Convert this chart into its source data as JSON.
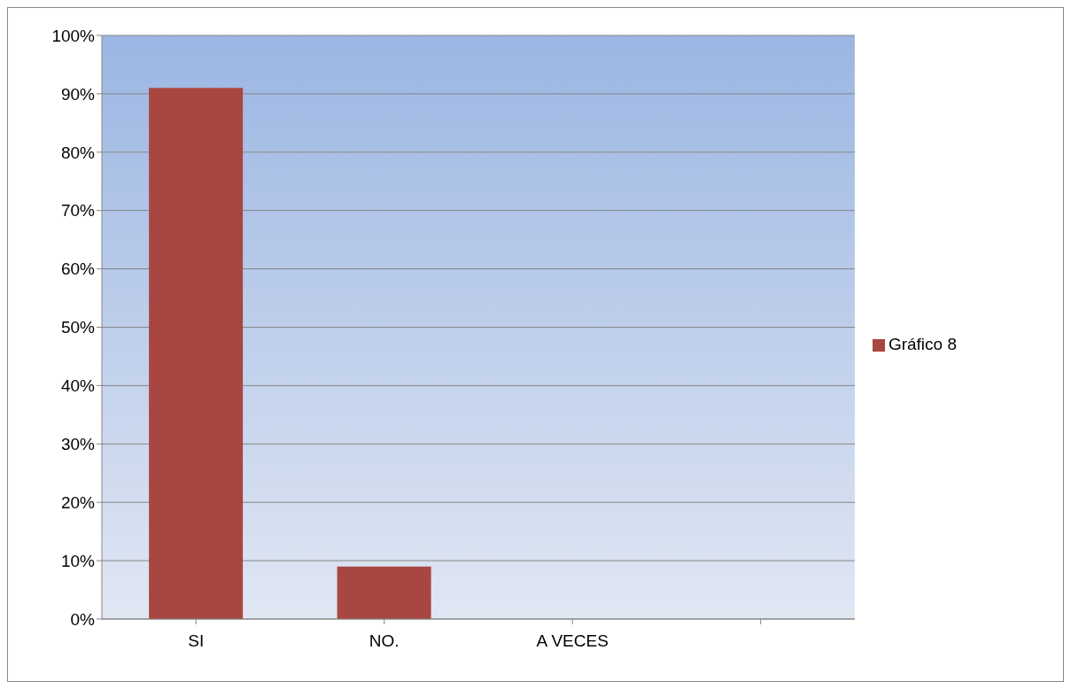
{
  "chart_data": {
    "type": "bar",
    "categories": [
      "SI",
      "NO.",
      "A VECES",
      null
    ],
    "series": [
      {
        "name": "Gráfico 8",
        "color": "#a84642",
        "values": [
          91,
          9,
          0,
          null
        ]
      }
    ],
    "ylim": [
      0,
      100
    ],
    "yticks": [
      {
        "value": 0,
        "label": "0%"
      },
      {
        "value": 10,
        "label": "10%"
      },
      {
        "value": 20,
        "label": "20%"
      },
      {
        "value": 30,
        "label": "30%"
      },
      {
        "value": 40,
        "label": "40%"
      },
      {
        "value": 50,
        "label": "50%"
      },
      {
        "value": 60,
        "label": "60%"
      },
      {
        "value": 70,
        "label": "70%"
      },
      {
        "value": 80,
        "label": "80%"
      },
      {
        "value": 90,
        "label": "90%"
      },
      {
        "value": 100,
        "label": "100%"
      }
    ],
    "grid": "y",
    "legend": "right"
  }
}
